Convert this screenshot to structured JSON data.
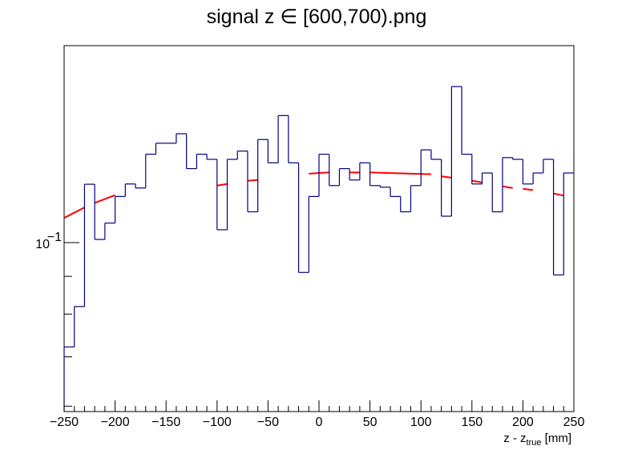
{
  "chart_data": {
    "type": "histogram",
    "title": "signal z ∈ [600,700).png",
    "xlabel": {
      "main": "z - z",
      "sub": "true",
      "unit": " [mm]"
    },
    "ylabel": "",
    "xlim": [
      -250,
      250
    ],
    "ylim": [
      0.059,
      0.185
    ],
    "yscale": "log",
    "grid": false,
    "x_ticks": [
      {
        "value": -250,
        "label": "−250"
      },
      {
        "value": -200,
        "label": "−200"
      },
      {
        "value": -150,
        "label": "−150"
      },
      {
        "value": -100,
        "label": "−100"
      },
      {
        "value": -50,
        "label": "−50"
      },
      {
        "value": 0,
        "label": "0"
      },
      {
        "value": 50,
        "label": "50"
      },
      {
        "value": 100,
        "label": "100"
      },
      {
        "value": 150,
        "label": "150"
      },
      {
        "value": 200,
        "label": "200"
      },
      {
        "value": 250,
        "label": "250"
      }
    ],
    "y_ticks": [
      {
        "value": 0.1,
        "label_base": "10",
        "label_exp": "−1"
      }
    ],
    "bin_width": 10,
    "series": [
      {
        "kind": "histogram",
        "color": "#000080",
        "bins": [
          {
            "x0": -250,
            "y": 0.0722
          },
          {
            "x0": -240,
            "y": 0.0819
          },
          {
            "x0": -230,
            "y": 0.12
          },
          {
            "x0": -220,
            "y": 0.101
          },
          {
            "x0": -210,
            "y": 0.1063
          },
          {
            "x0": -200,
            "y": 0.1155
          },
          {
            "x0": -190,
            "y": 0.1201
          },
          {
            "x0": -180,
            "y": 0.1186
          },
          {
            "x0": -170,
            "y": 0.1318
          },
          {
            "x0": -160,
            "y": 0.1364
          },
          {
            "x0": -150,
            "y": 0.1364
          },
          {
            "x0": -140,
            "y": 0.1405
          },
          {
            "x0": -130,
            "y": 0.126
          },
          {
            "x0": -120,
            "y": 0.1318
          },
          {
            "x0": -110,
            "y": 0.1297
          },
          {
            "x0": -100,
            "y": 0.1041
          },
          {
            "x0": -90,
            "y": 0.1297
          },
          {
            "x0": -80,
            "y": 0.1331
          },
          {
            "x0": -70,
            "y": 0.1101
          },
          {
            "x0": -60,
            "y": 0.138
          },
          {
            "x0": -50,
            "y": 0.1283
          },
          {
            "x0": -40,
            "y": 0.1487
          },
          {
            "x0": -30,
            "y": 0.1283
          },
          {
            "x0": -20,
            "y": 0.0911
          },
          {
            "x0": -10,
            "y": 0.1155
          },
          {
            "x0": 0,
            "y": 0.1318
          },
          {
            "x0": 10,
            "y": 0.1195
          },
          {
            "x0": 20,
            "y": 0.126
          },
          {
            "x0": 30,
            "y": 0.1216
          },
          {
            "x0": 40,
            "y": 0.1283
          },
          {
            "x0": 50,
            "y": 0.1195
          },
          {
            "x0": 60,
            "y": 0.1189
          },
          {
            "x0": 70,
            "y": 0.1155
          },
          {
            "x0": 80,
            "y": 0.1101
          },
          {
            "x0": 90,
            "y": 0.1195
          },
          {
            "x0": 100,
            "y": 0.1336
          },
          {
            "x0": 110,
            "y": 0.1297
          },
          {
            "x0": 120,
            "y": 0.1086
          },
          {
            "x0": 130,
            "y": 0.1628
          },
          {
            "x0": 140,
            "y": 0.1318
          },
          {
            "x0": 150,
            "y": 0.1201
          },
          {
            "x0": 160,
            "y": 0.1243
          },
          {
            "x0": 170,
            "y": 0.1101
          },
          {
            "x0": 180,
            "y": 0.1304
          },
          {
            "x0": 190,
            "y": 0.1297
          },
          {
            "x0": 200,
            "y": 0.1201
          },
          {
            "x0": 210,
            "y": 0.1243
          },
          {
            "x0": 220,
            "y": 0.1297
          },
          {
            "x0": 230,
            "y": 0.0904
          },
          {
            "x0": 240,
            "y": 0.1243
          }
        ]
      },
      {
        "kind": "fit-segments",
        "color": "#ff0000",
        "segments": [
          [
            {
              "x": -250,
              "y": 0.108
            },
            {
              "x": -230,
              "y": 0.1116
            }
          ],
          [
            {
              "x": -220,
              "y": 0.1132
            },
            {
              "x": -200,
              "y": 0.116
            }
          ],
          [
            {
              "x": -100,
              "y": 0.1195
            },
            {
              "x": -90,
              "y": 0.1201
            }
          ],
          [
            {
              "x": -70,
              "y": 0.1213
            },
            {
              "x": -60,
              "y": 0.1216
            }
          ],
          [
            {
              "x": -10,
              "y": 0.124
            },
            {
              "x": 0,
              "y": 0.1243
            }
          ],
          [
            {
              "x": 0,
              "y": 0.1243
            },
            {
              "x": 10,
              "y": 0.1245
            }
          ],
          [
            {
              "x": 30,
              "y": 0.1245
            },
            {
              "x": 40,
              "y": 0.1245
            }
          ],
          [
            {
              "x": 50,
              "y": 0.1245
            },
            {
              "x": 110,
              "y": 0.1238
            }
          ],
          [
            {
              "x": 120,
              "y": 0.123
            },
            {
              "x": 130,
              "y": 0.1225
            }
          ],
          [
            {
              "x": 150,
              "y": 0.1213
            },
            {
              "x": 160,
              "y": 0.1207
            }
          ],
          [
            {
              "x": 180,
              "y": 0.1192
            },
            {
              "x": 190,
              "y": 0.1186
            }
          ],
          [
            {
              "x": 200,
              "y": 0.1183
            },
            {
              "x": 210,
              "y": 0.1178
            }
          ],
          [
            {
              "x": 230,
              "y": 0.1166
            },
            {
              "x": 240,
              "y": 0.1158
            }
          ]
        ]
      }
    ]
  }
}
